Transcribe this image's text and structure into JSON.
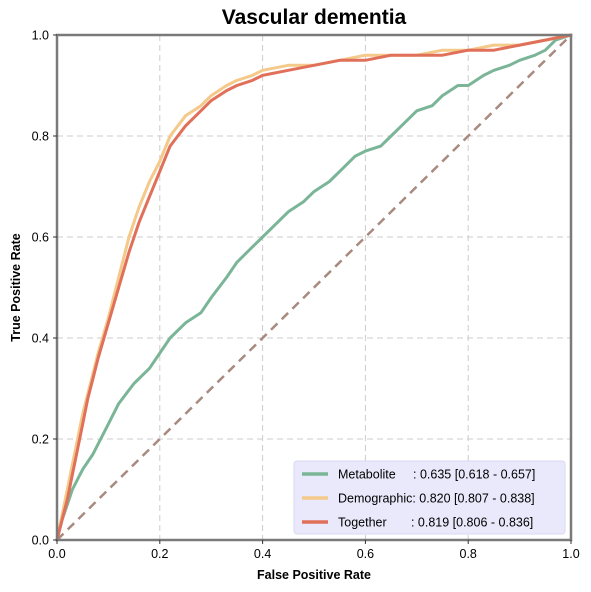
{
  "chart_data": {
    "type": "line",
    "title": "Vascular dementia",
    "xlabel": "False Positive Rate",
    "ylabel": "True Positive Rate",
    "xlim": [
      0,
      1
    ],
    "ylim": [
      0,
      1
    ],
    "xticks": [
      "0.0",
      "0.2",
      "0.4",
      "0.6",
      "0.8",
      "1.0"
    ],
    "yticks": [
      "0.0",
      "0.2",
      "0.4",
      "0.6",
      "0.8",
      "1.0"
    ],
    "grid": true,
    "legend_position": "lower-right",
    "diagonal": {
      "x": [
        0,
        1
      ],
      "y": [
        0,
        1
      ],
      "color": "#a88a7e"
    },
    "series": [
      {
        "name": "Metabolite",
        "legend_label": "Metabolite     : 0.635 [0.618 - 0.657]",
        "color": "#7bb597",
        "x": [
          0,
          0.01,
          0.02,
          0.03,
          0.05,
          0.07,
          0.08,
          0.1,
          0.12,
          0.15,
          0.18,
          0.2,
          0.22,
          0.25,
          0.28,
          0.3,
          0.33,
          0.35,
          0.38,
          0.4,
          0.42,
          0.45,
          0.48,
          0.5,
          0.53,
          0.55,
          0.58,
          0.6,
          0.63,
          0.65,
          0.68,
          0.7,
          0.73,
          0.75,
          0.78,
          0.8,
          0.83,
          0.85,
          0.88,
          0.9,
          0.93,
          0.95,
          0.97,
          1.0
        ],
        "y": [
          0,
          0.04,
          0.07,
          0.1,
          0.14,
          0.17,
          0.19,
          0.23,
          0.27,
          0.31,
          0.34,
          0.37,
          0.4,
          0.43,
          0.45,
          0.48,
          0.52,
          0.55,
          0.58,
          0.6,
          0.62,
          0.65,
          0.67,
          0.69,
          0.71,
          0.73,
          0.76,
          0.77,
          0.78,
          0.8,
          0.83,
          0.85,
          0.86,
          0.88,
          0.9,
          0.9,
          0.92,
          0.93,
          0.94,
          0.95,
          0.96,
          0.97,
          0.99,
          1.0
        ]
      },
      {
        "name": "Demographic",
        "legend_label": "Demographic: 0.820 [0.807 - 0.838]",
        "color": "#f4c98a",
        "x": [
          0,
          0.01,
          0.02,
          0.03,
          0.04,
          0.05,
          0.06,
          0.07,
          0.08,
          0.1,
          0.12,
          0.14,
          0.16,
          0.18,
          0.2,
          0.22,
          0.25,
          0.28,
          0.3,
          0.33,
          0.35,
          0.38,
          0.4,
          0.45,
          0.5,
          0.55,
          0.6,
          0.65,
          0.7,
          0.75,
          0.8,
          0.85,
          0.9,
          0.95,
          1.0
        ],
        "y": [
          0,
          0.05,
          0.1,
          0.15,
          0.2,
          0.25,
          0.29,
          0.33,
          0.37,
          0.44,
          0.52,
          0.6,
          0.66,
          0.71,
          0.75,
          0.8,
          0.84,
          0.86,
          0.88,
          0.9,
          0.91,
          0.92,
          0.93,
          0.94,
          0.94,
          0.95,
          0.96,
          0.96,
          0.96,
          0.97,
          0.97,
          0.98,
          0.98,
          0.99,
          1.0
        ]
      },
      {
        "name": "Together",
        "legend_label": "Together       : 0.819 [0.806 - 0.836]",
        "color": "#e0705a",
        "x": [
          0,
          0.01,
          0.02,
          0.03,
          0.04,
          0.05,
          0.06,
          0.07,
          0.08,
          0.1,
          0.12,
          0.14,
          0.16,
          0.18,
          0.2,
          0.22,
          0.25,
          0.28,
          0.3,
          0.33,
          0.35,
          0.38,
          0.4,
          0.45,
          0.5,
          0.55,
          0.6,
          0.65,
          0.7,
          0.75,
          0.8,
          0.85,
          0.9,
          0.95,
          1.0
        ],
        "y": [
          0,
          0.04,
          0.08,
          0.13,
          0.18,
          0.23,
          0.28,
          0.32,
          0.36,
          0.43,
          0.5,
          0.57,
          0.63,
          0.68,
          0.73,
          0.78,
          0.82,
          0.85,
          0.87,
          0.89,
          0.9,
          0.91,
          0.92,
          0.93,
          0.94,
          0.95,
          0.95,
          0.96,
          0.96,
          0.96,
          0.97,
          0.97,
          0.98,
          0.99,
          1.0
        ]
      }
    ]
  }
}
